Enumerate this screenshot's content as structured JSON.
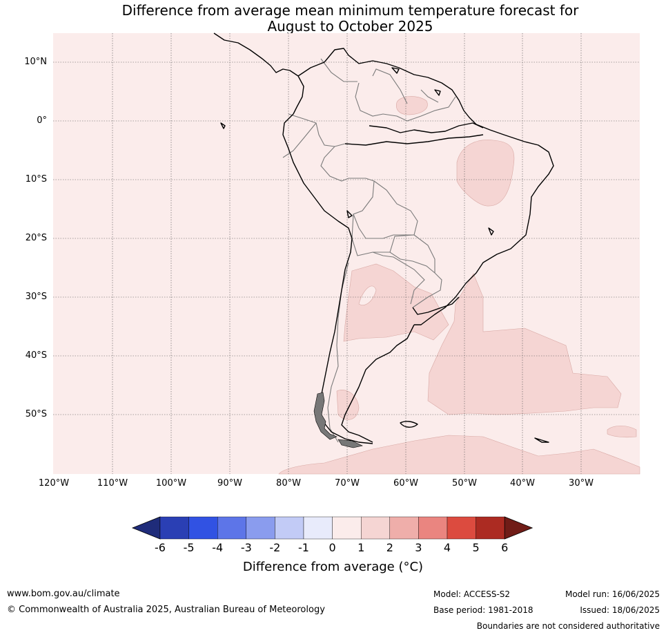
{
  "title_line1": "Difference from average mean minimum temperature forecast for",
  "title_line2": "August to October 2025",
  "lat_labels": [
    "10°N",
    "0°",
    "10°S",
    "20°S",
    "30°S",
    "40°S",
    "50°S"
  ],
  "lon_labels": [
    "120°W",
    "110°W",
    "100°W",
    "90°W",
    "80°W",
    "70°W",
    "60°W",
    "50°W",
    "40°W",
    "30°W"
  ],
  "colorbar": {
    "title": "Difference from average (°C)",
    "ticks": [
      "-6",
      "-5",
      "-4",
      "-3",
      "-2",
      "-1",
      "0",
      "1",
      "2",
      "3",
      "4",
      "5",
      "6"
    ],
    "colors": [
      "#1f2c7a",
      "#2a3fb4",
      "#3152e3",
      "#5d75e8",
      "#8a9cee",
      "#c2cbf6",
      "#e8ebfb",
      "#fbeceb",
      "#f5d5d3",
      "#efaeaa",
      "#ea8580",
      "#dc4b3f",
      "#ac2b22",
      "#701c17"
    ]
  },
  "footer": {
    "website": "www.bom.gov.au/climate",
    "copyright": "© Commonwealth of Australia 2025, Australian Bureau of Meteorology",
    "model": "Model: ACCESS-S2",
    "base_period": "Base period: 1981-2018",
    "model_run": "Model run: 16/06/2025",
    "issued": "Issued: 18/06/2025",
    "disclaimer": "Boundaries are not considered authoritative"
  }
}
